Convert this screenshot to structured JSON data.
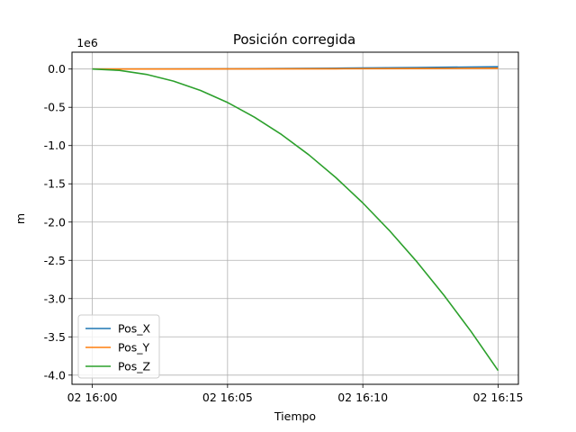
{
  "chart_data": {
    "type": "line",
    "title": "Posición corregida",
    "xlabel": "Tiempo",
    "ylabel": "m",
    "y_offset_label": "1e6",
    "x_ticks": [
      "02 16:00",
      "02 16:05",
      "02 16:10",
      "02 16:15"
    ],
    "x_range_minutes": [
      -0.75,
      15.75
    ],
    "y_ticks": [
      0.0,
      -0.5,
      -1.0,
      -1.5,
      -2.0,
      -2.5,
      -3.0,
      -3.5,
      -4.0
    ],
    "y_tick_labels": [
      "0.0",
      "-0.5",
      "-1.0",
      "-1.5",
      "-2.0",
      "-2.5",
      "-3.0",
      "-3.5",
      "-4.0"
    ],
    "ylim": [
      -4.12,
      0.22
    ],
    "grid": true,
    "legend_position": "lower-left",
    "series": [
      {
        "name": "Pos_X",
        "color": "#1f77b4",
        "x": [
          0,
          3,
          6,
          9,
          12,
          15
        ],
        "y": [
          0.0,
          0.0012,
          0.0048,
          0.0108,
          0.0192,
          0.03
        ]
      },
      {
        "name": "Pos_Y",
        "color": "#ff7f0e",
        "x": [
          0,
          3,
          6,
          9,
          12,
          15
        ],
        "y": [
          0.0,
          0.0004,
          0.0016,
          0.0036,
          0.0064,
          0.01
        ]
      },
      {
        "name": "Pos_Z",
        "color": "#2ca02c",
        "x": [
          0,
          1,
          2,
          3,
          4,
          5,
          6,
          7,
          8,
          9,
          10,
          11,
          12,
          13,
          14,
          15
        ],
        "y": [
          0.0,
          -0.0175,
          -0.07,
          -0.1575,
          -0.28,
          -0.4375,
          -0.63,
          -0.8575,
          -1.12,
          -1.4175,
          -1.75,
          -2.1175,
          -2.52,
          -2.9575,
          -3.43,
          -3.94
        ]
      }
    ]
  }
}
